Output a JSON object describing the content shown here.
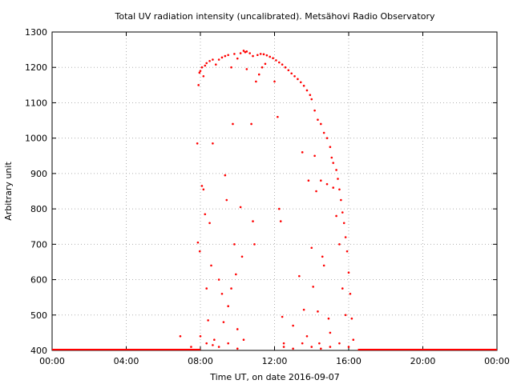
{
  "chart_data": {
    "type": "scatter",
    "title": "Total UV radiation intensity (uncalibrated). Metsähovi Radio Observatory",
    "xlabel": "Time UT, on date 2016-09-07",
    "ylabel": "Arbitrary unit",
    "xlim": [
      "00:00",
      "24:00"
    ],
    "ylim": [
      400,
      1300
    ],
    "x_ticks": [
      "00:00",
      "04:00",
      "08:00",
      "12:00",
      "16:00",
      "20:00",
      "00:00"
    ],
    "y_ticks": [
      "400",
      "500",
      "600",
      "700",
      "800",
      "900",
      "1000",
      "1100",
      "1200",
      "1300"
    ],
    "grid": true,
    "series_color": "#ff0000",
    "baseline": {
      "value": 400,
      "ranges": [
        [
          "00:00",
          "08:00"
        ],
        [
          "16:30",
          "24:00"
        ]
      ]
    },
    "series": [
      {
        "points": [
          [
            "07:54",
            1150
          ],
          [
            "07:57",
            1185
          ],
          [
            "08:00",
            1190
          ],
          [
            "08:05",
            1200
          ],
          [
            "08:10",
            1175
          ],
          [
            "08:15",
            1205
          ],
          [
            "08:20",
            1212
          ],
          [
            "08:30",
            1218
          ],
          [
            "08:40",
            1222
          ],
          [
            "08:50",
            1208
          ],
          [
            "09:00",
            1222
          ],
          [
            "09:10",
            1228
          ],
          [
            "09:20",
            1232
          ],
          [
            "09:30",
            1235
          ],
          [
            "09:40",
            1200
          ],
          [
            "09:50",
            1238
          ],
          [
            "10:00",
            1225
          ],
          [
            "10:10",
            1240
          ],
          [
            "10:20",
            1247
          ],
          [
            "10:25",
            1243
          ],
          [
            "10:30",
            1245
          ],
          [
            "10:40",
            1240
          ],
          [
            "10:50",
            1232
          ],
          [
            "11:05",
            1235
          ],
          [
            "11:15",
            1238
          ],
          [
            "11:25",
            1237
          ],
          [
            "11:35",
            1234
          ],
          [
            "11:45",
            1230
          ],
          [
            "11:55",
            1226
          ],
          [
            "12:05",
            1220
          ],
          [
            "12:15",
            1214
          ],
          [
            "12:25",
            1208
          ],
          [
            "12:35",
            1200
          ],
          [
            "12:45",
            1192
          ],
          [
            "12:55",
            1183
          ],
          [
            "13:05",
            1175
          ],
          [
            "13:15",
            1167
          ],
          [
            "13:25",
            1158
          ],
          [
            "13:35",
            1148
          ],
          [
            "13:45",
            1135
          ],
          [
            "13:55",
            1122
          ],
          [
            "14:00",
            1110
          ],
          [
            "14:10",
            1078
          ],
          [
            "14:20",
            1052
          ],
          [
            "14:30",
            1040
          ],
          [
            "14:40",
            1015
          ],
          [
            "14:50",
            1000
          ],
          [
            "15:00",
            975
          ],
          [
            "15:05",
            945
          ],
          [
            "15:10",
            930
          ],
          [
            "15:20",
            910
          ],
          [
            "15:25",
            885
          ],
          [
            "15:30",
            855
          ],
          [
            "15:35",
            825
          ],
          [
            "15:40",
            790
          ],
          [
            "15:45",
            760
          ],
          [
            "15:50",
            720
          ],
          [
            "15:55",
            680
          ],
          [
            "16:00",
            620
          ],
          [
            "16:05",
            560
          ],
          [
            "16:10",
            490
          ],
          [
            "16:15",
            430
          ],
          [
            "07:50",
            985
          ],
          [
            "07:52",
            705
          ],
          [
            "07:58",
            680
          ],
          [
            "08:05",
            865
          ],
          [
            "08:10",
            855
          ],
          [
            "08:15",
            785
          ],
          [
            "08:20",
            575
          ],
          [
            "08:25",
            485
          ],
          [
            "08:30",
            760
          ],
          [
            "08:35",
            640
          ],
          [
            "08:40",
            985
          ],
          [
            "08:45",
            430
          ],
          [
            "09:00",
            600
          ],
          [
            "09:10",
            560
          ],
          [
            "09:15",
            480
          ],
          [
            "09:20",
            895
          ],
          [
            "09:25",
            825
          ],
          [
            "09:30",
            525
          ],
          [
            "09:40",
            575
          ],
          [
            "09:45",
            1040
          ],
          [
            "09:50",
            700
          ],
          [
            "09:55",
            615
          ],
          [
            "10:00",
            460
          ],
          [
            "10:10",
            805
          ],
          [
            "10:15",
            665
          ],
          [
            "10:20",
            430
          ],
          [
            "10:30",
            1195
          ],
          [
            "10:45",
            1040
          ],
          [
            "10:50",
            765
          ],
          [
            "10:55",
            700
          ],
          [
            "11:00",
            1160
          ],
          [
            "11:10",
            1180
          ],
          [
            "11:20",
            1200
          ],
          [
            "11:30",
            1210
          ],
          [
            "12:00",
            1160
          ],
          [
            "12:10",
            1060
          ],
          [
            "12:15",
            800
          ],
          [
            "12:20",
            765
          ],
          [
            "12:25",
            495
          ],
          [
            "12:30",
            420
          ],
          [
            "13:00",
            470
          ],
          [
            "13:20",
            610
          ],
          [
            "13:30",
            960
          ],
          [
            "13:35",
            515
          ],
          [
            "13:45",
            440
          ],
          [
            "13:50",
            880
          ],
          [
            "14:00",
            690
          ],
          [
            "14:05",
            580
          ],
          [
            "14:10",
            950
          ],
          [
            "14:15",
            850
          ],
          [
            "14:20",
            510
          ],
          [
            "14:25",
            420
          ],
          [
            "14:30",
            880
          ],
          [
            "14:35",
            665
          ],
          [
            "14:40",
            640
          ],
          [
            "14:50",
            870
          ],
          [
            "14:55",
            490
          ],
          [
            "15:00",
            450
          ],
          [
            "15:10",
            860
          ],
          [
            "15:20",
            780
          ],
          [
            "15:30",
            700
          ],
          [
            "15:40",
            575
          ],
          [
            "15:50",
            500
          ],
          [
            "06:55",
            440
          ],
          [
            "07:30",
            410
          ],
          [
            "08:00",
            440
          ],
          [
            "08:20",
            420
          ],
          [
            "08:40",
            415
          ],
          [
            "09:00",
            410
          ],
          [
            "09:30",
            420
          ],
          [
            "10:00",
            405
          ],
          [
            "12:30",
            410
          ],
          [
            "13:00",
            405
          ],
          [
            "13:30",
            420
          ],
          [
            "14:00",
            410
          ],
          [
            "14:30",
            405
          ],
          [
            "15:00",
            410
          ],
          [
            "15:30",
            420
          ],
          [
            "16:00",
            410
          ]
        ]
      }
    ]
  }
}
